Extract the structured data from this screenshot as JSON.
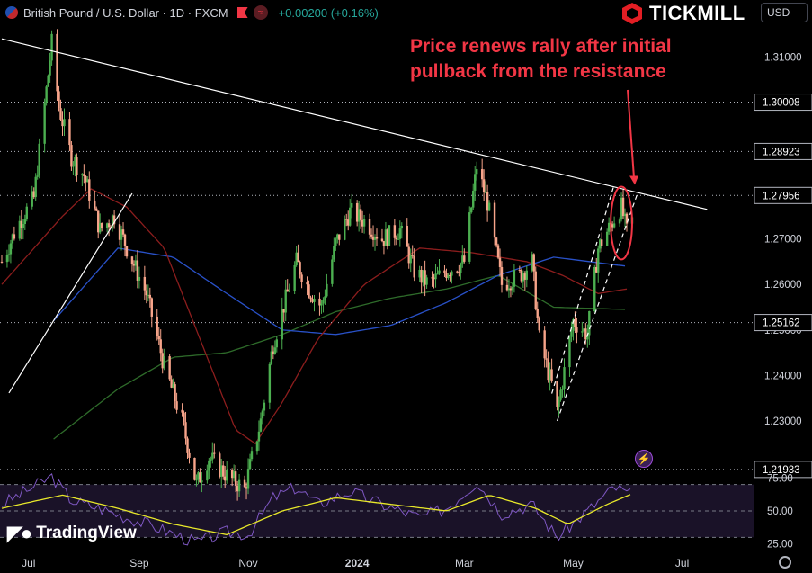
{
  "header": {
    "symbol_title": "British Pound / U.S. Dollar · 1D · FXCM",
    "change": "+0.00200 (+0.16%)",
    "currency": "USD"
  },
  "brand": {
    "name": "TICKMILL"
  },
  "footer_brand": {
    "name": "TradingView"
  },
  "annotation": {
    "line1": "Price renews rally after initial",
    "line2": "pullback from the resistance"
  },
  "colors": {
    "bull": "#26a69a",
    "bull_light": "#4caf50",
    "bear": "#f7a48a",
    "resistance_line": "#ffffff",
    "annotation": "#f23645",
    "rsi": "#7e57c2",
    "rsi_ma": "#e8e82a"
  },
  "chart_data": [
    {
      "type": "candlestick",
      "ylim": [
        1.2193,
        1.317
      ],
      "y_ticks": [
        1.31,
        1.29,
        1.28,
        1.27,
        1.26,
        1.25,
        1.24,
        1.23
      ],
      "y_ticks_text": [
        "1.31000",
        "1.29000",
        "1.28000",
        "1.27000",
        "1.26000",
        "1.25000",
        "1.24000",
        "1.23000"
      ],
      "price_labels": [
        "1.30008",
        "1.28923",
        "1.27956",
        "1.25162",
        "1.21933"
      ],
      "horizontal_levels": [
        1.30008,
        1.28923,
        1.27956,
        1.25162,
        1.21933
      ],
      "x_labels": [
        "Jul",
        "Sep",
        "Nov",
        "2024",
        "Mar",
        "May",
        "Jul"
      ],
      "x_label_dates": [
        "2023-07-01",
        "2023-09-01",
        "2023-11-01",
        "2024-01-01",
        "2024-03-01",
        "2024-05-01",
        "2024-07-01"
      ],
      "x_range": [
        "2023-06-15",
        "2024-08-10"
      ],
      "resistance_line": {
        "from": [
          "2023-06-16",
          1.314
        ],
        "to": [
          "2024-07-15",
          1.2765
        ]
      },
      "support_line": {
        "from": [
          "2023-06-20",
          1.248
        ],
        "to": [
          "2023-08-28",
          1.28
        ]
      },
      "channel": [
        {
          "from": [
            "2024-04-19",
            1.236
          ],
          "to": [
            "2024-05-24",
            1.282
          ]
        },
        {
          "from": [
            "2024-04-22",
            1.23
          ],
          "to": [
            "2024-06-06",
            1.28
          ]
        }
      ],
      "highlight_circle": {
        "center": [
          "2024-05-28",
          1.2735
        ],
        "rx_days": 6,
        "ry_price": 0.008
      },
      "anchors": [
        [
          "2023-06-16",
          1.265
        ],
        [
          "2023-06-25",
          1.273
        ],
        [
          "2023-07-04",
          1.279
        ],
        [
          "2023-07-14",
          1.313
        ],
        [
          "2023-07-18",
          1.299
        ],
        [
          "2023-07-25",
          1.288
        ],
        [
          "2023-08-01",
          1.284
        ],
        [
          "2023-08-10",
          1.272
        ],
        [
          "2023-08-18",
          1.275
        ],
        [
          "2023-08-25",
          1.268
        ],
        [
          "2023-09-05",
          1.258
        ],
        [
          "2023-09-15",
          1.242
        ],
        [
          "2023-09-25",
          1.23
        ],
        [
          "2023-10-03",
          1.216
        ],
        [
          "2023-10-10",
          1.222
        ],
        [
          "2023-10-20",
          1.218
        ],
        [
          "2023-10-30",
          1.215
        ],
        [
          "2023-11-08",
          1.23
        ],
        [
          "2023-11-15",
          1.247
        ],
        [
          "2023-11-28",
          1.265
        ],
        [
          "2023-12-05",
          1.259
        ],
        [
          "2023-12-12",
          1.255
        ],
        [
          "2023-12-20",
          1.269
        ],
        [
          "2023-12-28",
          1.276
        ],
        [
          "2024-01-05",
          1.274
        ],
        [
          "2024-01-15",
          1.27
        ],
        [
          "2024-01-25",
          1.272
        ],
        [
          "2024-02-02",
          1.263
        ],
        [
          "2024-02-10",
          1.26
        ],
        [
          "2024-02-20",
          1.263
        ],
        [
          "2024-03-01",
          1.265
        ],
        [
          "2024-03-08",
          1.286
        ],
        [
          "2024-03-14",
          1.278
        ],
        [
          "2024-03-22",
          1.26
        ],
        [
          "2024-04-01",
          1.262
        ],
        [
          "2024-04-08",
          1.265
        ],
        [
          "2024-04-12",
          1.248
        ],
        [
          "2024-04-19",
          1.238
        ],
        [
          "2024-04-22",
          1.232
        ],
        [
          "2024-05-01",
          1.252
        ],
        [
          "2024-05-09",
          1.249
        ],
        [
          "2024-05-15",
          1.268
        ],
        [
          "2024-05-24",
          1.2745
        ],
        [
          "2024-05-28",
          1.277
        ],
        [
          "2024-05-31",
          1.2715
        ],
        [
          "2024-06-03",
          1.274
        ]
      ],
      "ma_short": [
        [
          "2023-06-16",
          1.26
        ],
        [
          "2023-07-20",
          1.275
        ],
        [
          "2023-08-05",
          1.281
        ],
        [
          "2023-08-25",
          1.277
        ],
        [
          "2023-09-15",
          1.268
        ],
        [
          "2023-10-05",
          1.248
        ],
        [
          "2023-10-25",
          1.228
        ],
        [
          "2023-11-05",
          1.225
        ],
        [
          "2023-11-20",
          1.234
        ],
        [
          "2023-12-10",
          1.248
        ],
        [
          "2024-01-05",
          1.26
        ],
        [
          "2024-02-05",
          1.268
        ],
        [
          "2024-03-05",
          1.267
        ],
        [
          "2024-04-05",
          1.265
        ],
        [
          "2024-04-25",
          1.262
        ],
        [
          "2024-05-15",
          1.258
        ],
        [
          "2024-05-31",
          1.259
        ]
      ],
      "ma_mid": [
        [
          "2023-07-15",
          1.252
        ],
        [
          "2023-08-20",
          1.268
        ],
        [
          "2023-09-20",
          1.266
        ],
        [
          "2023-10-20",
          1.258
        ],
        [
          "2023-11-20",
          1.25
        ],
        [
          "2023-12-20",
          1.249
        ],
        [
          "2024-01-20",
          1.251
        ],
        [
          "2024-02-20",
          1.256
        ],
        [
          "2024-03-20",
          1.262
        ],
        [
          "2024-04-20",
          1.266
        ],
        [
          "2024-05-31",
          1.264
        ]
      ],
      "ma_long": [
        [
          "2023-07-15",
          1.226
        ],
        [
          "2023-08-20",
          1.237
        ],
        [
          "2023-09-20",
          1.244
        ],
        [
          "2023-10-20",
          1.245
        ],
        [
          "2023-11-20",
          1.249
        ],
        [
          "2023-12-20",
          1.254
        ],
        [
          "2024-01-20",
          1.257
        ],
        [
          "2024-02-20",
          1.259
        ],
        [
          "2024-03-20",
          1.262
        ],
        [
          "2024-04-20",
          1.255
        ],
        [
          "2024-05-31",
          1.2545
        ]
      ]
    },
    {
      "type": "line",
      "ylim": [
        20,
        80
      ],
      "y_ticks": [
        75,
        50,
        25
      ],
      "y_ticks_text": [
        "75.00",
        "50.00",
        "25.00"
      ],
      "reference_lines": [
        70,
        50,
        30
      ],
      "rsi_anchors": [
        [
          "2023-06-16",
          55
        ],
        [
          "2023-07-14",
          76
        ],
        [
          "2023-07-25",
          58
        ],
        [
          "2023-08-10",
          52
        ],
        [
          "2023-08-25",
          45
        ],
        [
          "2023-09-10",
          38
        ],
        [
          "2023-09-25",
          30
        ],
        [
          "2023-10-03",
          26
        ],
        [
          "2023-10-20",
          34
        ],
        [
          "2023-11-01",
          32
        ],
        [
          "2023-11-15",
          60
        ],
        [
          "2023-11-28",
          68
        ],
        [
          "2023-12-10",
          55
        ],
        [
          "2023-12-28",
          65
        ],
        [
          "2024-01-15",
          55
        ],
        [
          "2024-02-05",
          45
        ],
        [
          "2024-02-20",
          52
        ],
        [
          "2024-03-08",
          72
        ],
        [
          "2024-03-22",
          48
        ],
        [
          "2024-04-08",
          55
        ],
        [
          "2024-04-22",
          30
        ],
        [
          "2024-05-09",
          50
        ],
        [
          "2024-05-24",
          68
        ],
        [
          "2024-06-03",
          62
        ]
      ],
      "ma_anchors": [
        [
          "2023-06-16",
          52
        ],
        [
          "2023-07-20",
          62
        ],
        [
          "2023-08-20",
          52
        ],
        [
          "2023-09-20",
          40
        ],
        [
          "2023-10-20",
          32
        ],
        [
          "2023-11-20",
          50
        ],
        [
          "2023-12-20",
          60
        ],
        [
          "2024-01-20",
          55
        ],
        [
          "2024-02-20",
          50
        ],
        [
          "2024-03-15",
          62
        ],
        [
          "2024-04-10",
          52
        ],
        [
          "2024-04-28",
          40
        ],
        [
          "2024-05-20",
          55
        ],
        [
          "2024-06-03",
          63
        ]
      ]
    }
  ]
}
